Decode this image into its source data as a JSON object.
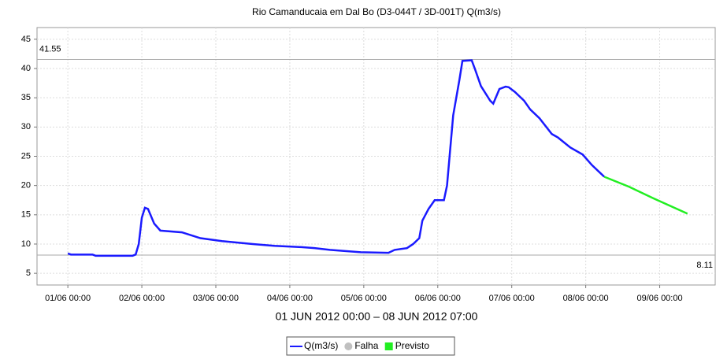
{
  "chart_data": {
    "type": "line",
    "title": "Rio Camanducaia em Dal Bo (D3-044T / 3D-001T) Q(m3/s)",
    "xlabel": "01 JUN 2012 00:00 – 08 JUN 2012 07:00",
    "xlim": [
      "31/05 14:00",
      "09/06 18:00"
    ],
    "xticks": [
      "01/06 00:00",
      "02/06 00:00",
      "03/06 00:00",
      "04/06 00:00",
      "05/06 00:00",
      "06/06 00:00",
      "07/06 00:00",
      "08/06 00:00",
      "09/06 00:00"
    ],
    "ylim": [
      3,
      47
    ],
    "yticks": [
      5,
      10,
      15,
      20,
      25,
      30,
      35,
      40,
      45
    ],
    "grid": true,
    "reference_lines": [
      41.55,
      8.11
    ],
    "legend": "bottom",
    "series": [
      {
        "name": "Q(m3/s)",
        "color": "#1a1aff",
        "x": [
          "01/06 00:00",
          "01/06 01:00",
          "01/06 08:00",
          "01/06 09:00",
          "01/06 21:00",
          "01/06 22:00",
          "01/06 23:00",
          "02/06 00:00",
          "02/06 01:00",
          "02/06 02:00",
          "02/06 04:00",
          "02/06 06:00",
          "02/06 13:00",
          "02/06 19:00",
          "03/06 02:00",
          "03/06 12:00",
          "03/06 19:00",
          "04/06 03:00",
          "04/06 08:00",
          "04/06 13:00",
          "04/06 18:00",
          "04/06 23:00",
          "05/06 08:00",
          "05/06 10:00",
          "05/06 14:00",
          "05/06 16:00",
          "05/06 18:00",
          "05/06 19:00",
          "05/06 21:00",
          "05/06 23:00",
          "06/06 02:00",
          "06/06 03:00",
          "06/06 05:00",
          "06/06 07:00",
          "06/06 08:00",
          "06/06 11:00",
          "06/06 12:00",
          "06/06 14:00",
          "06/06 17:00",
          "06/06 18:00",
          "06/06 20:00",
          "06/06 22:00",
          "06/06 23:00",
          "07/06 01:00",
          "07/06 04:00",
          "07/06 06:00",
          "07/06 09:00",
          "07/06 13:00",
          "07/06 15:00",
          "07/06 19:00",
          "07/06 23:00",
          "08/06 02:00",
          "08/06 06:00"
        ],
        "values": [
          8.4,
          8.2,
          8.2,
          8.0,
          8.0,
          8.2,
          10.0,
          14.5,
          16.2,
          16.0,
          13.5,
          12.3,
          12.0,
          11.0,
          10.5,
          10.0,
          9.7,
          9.5,
          9.3,
          9.0,
          8.8,
          8.6,
          8.5,
          9.0,
          9.3,
          10.0,
          11.0,
          14.0,
          16.0,
          17.5,
          17.5,
          20.0,
          32.0,
          38.0,
          41.3,
          41.4,
          40.0,
          37.0,
          34.5,
          34.0,
          36.5,
          36.9,
          36.8,
          36.0,
          34.5,
          33.0,
          31.5,
          28.8,
          28.2,
          26.5,
          25.3,
          23.5,
          21.5
        ]
      },
      {
        "name": "Falha",
        "color": "#c0c0c0",
        "x": [],
        "values": []
      },
      {
        "name": "Previsto",
        "color": "#22ee22",
        "x": [
          "08/06 06:00",
          "08/06 14:00",
          "08/06 22:00",
          "09/06 09:00"
        ],
        "values": [
          21.5,
          19.8,
          17.8,
          15.2
        ]
      }
    ]
  }
}
